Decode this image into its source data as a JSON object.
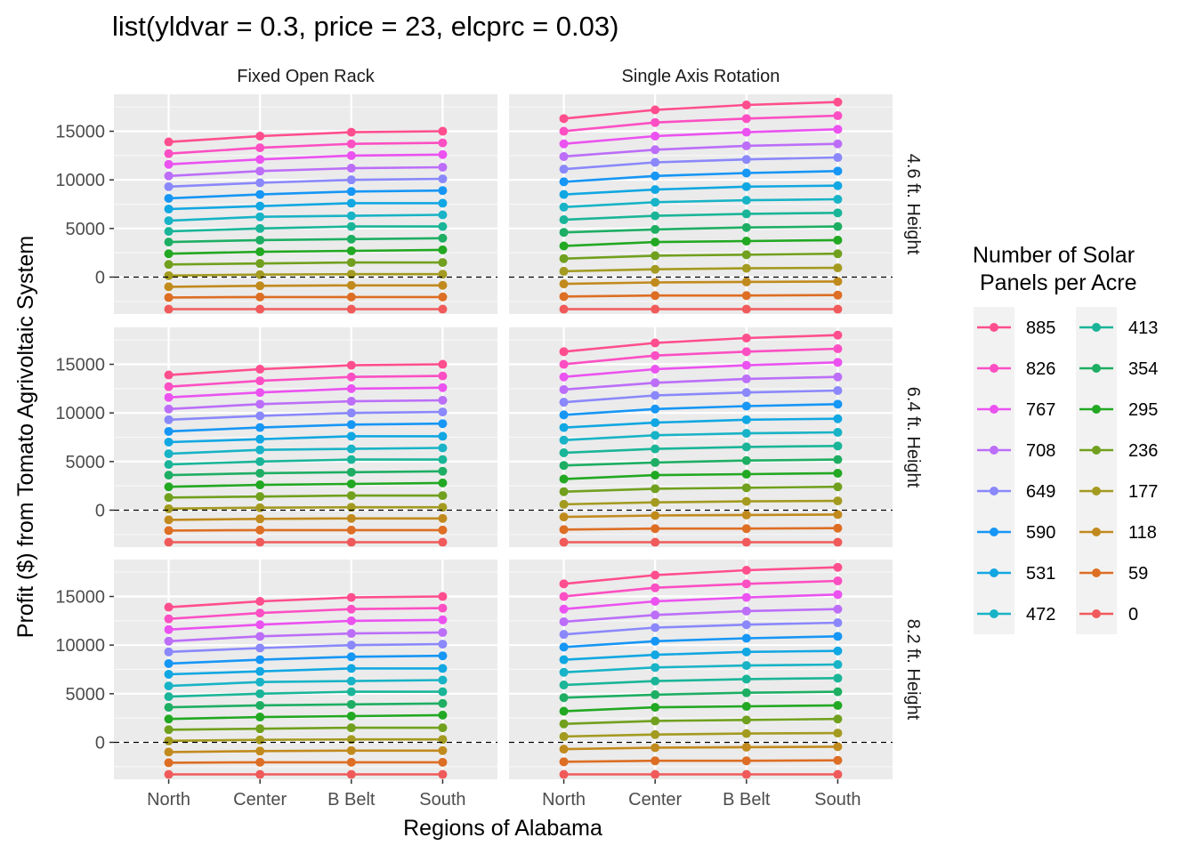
{
  "chart_data": {
    "type": "line",
    "title": "list(yldvar = 0.3, price = 23, elcprc = 0.03)",
    "xlabel": "Regions of Alabama",
    "ylabel": "Profit ($) from Tomato Agrivoltaic System",
    "categories": [
      "North",
      "Center",
      "B Belt",
      "South"
    ],
    "yticks": [
      0,
      5000,
      10000,
      15000
    ],
    "ylim": [
      -3800,
      18800
    ],
    "grid": true,
    "reference_line": 0,
    "columns": [
      "Fixed Open Rack",
      "Single Axis Rotation"
    ],
    "rows": [
      "4.6 ft. Height",
      "6.4 ft. Height",
      "8.2 ft. Height"
    ],
    "legend": {
      "title_lines": [
        "Number of Solar",
        "Panels per Acre"
      ],
      "position": "right",
      "entries": [
        {
          "label": "885",
          "color": "#FF4E8D"
        },
        {
          "label": "826",
          "color": "#FC4FC3"
        },
        {
          "label": "767",
          "color": "#EB52F0"
        },
        {
          "label": "708",
          "color": "#BC6EF8"
        },
        {
          "label": "649",
          "color": "#8A88FA"
        },
        {
          "label": "590",
          "color": "#1696F5"
        },
        {
          "label": "531",
          "color": "#11A7E2"
        },
        {
          "label": "472",
          "color": "#18B3C6"
        },
        {
          "label": "413",
          "color": "#1AB598"
        },
        {
          "label": "354",
          "color": "#1EAE63"
        },
        {
          "label": "295",
          "color": "#22A822"
        },
        {
          "label": "236",
          "color": "#71A01E"
        },
        {
          "label": "177",
          "color": "#A39A20"
        },
        {
          "label": "118",
          "color": "#C18A1D"
        },
        {
          "label": "59",
          "color": "#DD6E24"
        },
        {
          "label": "0",
          "color": "#F05A5A"
        }
      ]
    },
    "series_by_column": {
      "Fixed Open Rack": [
        {
          "name": "885",
          "values": [
            13900,
            14500,
            14900,
            15000
          ]
        },
        {
          "name": "826",
          "values": [
            12700,
            13300,
            13700,
            13800
          ]
        },
        {
          "name": "767",
          "values": [
            11600,
            12100,
            12500,
            12600
          ]
        },
        {
          "name": "708",
          "values": [
            10400,
            10900,
            11200,
            11300
          ]
        },
        {
          "name": "649",
          "values": [
            9300,
            9700,
            10000,
            10100
          ]
        },
        {
          "name": "590",
          "values": [
            8100,
            8500,
            8800,
            8900
          ]
        },
        {
          "name": "531",
          "values": [
            7000,
            7300,
            7600,
            7600
          ]
        },
        {
          "name": "472",
          "values": [
            5800,
            6200,
            6300,
            6400
          ]
        },
        {
          "name": "413",
          "values": [
            4700,
            5000,
            5200,
            5200
          ]
        },
        {
          "name": "354",
          "values": [
            3600,
            3800,
            3900,
            4000
          ]
        },
        {
          "name": "295",
          "values": [
            2400,
            2600,
            2700,
            2800
          ]
        },
        {
          "name": "236",
          "values": [
            1300,
            1400,
            1500,
            1500
          ]
        },
        {
          "name": "177",
          "values": [
            150,
            250,
            300,
            300
          ]
        },
        {
          "name": "118",
          "values": [
            -1000,
            -900,
            -850,
            -850
          ]
        },
        {
          "name": "59",
          "values": [
            -2100,
            -2050,
            -2050,
            -2050
          ]
        },
        {
          "name": "0",
          "values": [
            -3300,
            -3300,
            -3300,
            -3300
          ]
        }
      ],
      "Single Axis Rotation": [
        {
          "name": "885",
          "values": [
            16300,
            17200,
            17700,
            18000
          ]
        },
        {
          "name": "826",
          "values": [
            15000,
            15900,
            16300,
            16600
          ]
        },
        {
          "name": "767",
          "values": [
            13700,
            14500,
            14900,
            15200
          ]
        },
        {
          "name": "708",
          "values": [
            12400,
            13100,
            13500,
            13700
          ]
        },
        {
          "name": "649",
          "values": [
            11100,
            11800,
            12100,
            12300
          ]
        },
        {
          "name": "590",
          "values": [
            9800,
            10400,
            10700,
            10900
          ]
        },
        {
          "name": "531",
          "values": [
            8500,
            9000,
            9300,
            9400
          ]
        },
        {
          "name": "472",
          "values": [
            7200,
            7700,
            7900,
            8000
          ]
        },
        {
          "name": "413",
          "values": [
            5900,
            6300,
            6500,
            6600
          ]
        },
        {
          "name": "354",
          "values": [
            4600,
            4900,
            5100,
            5200
          ]
        },
        {
          "name": "295",
          "values": [
            3200,
            3600,
            3700,
            3800
          ]
        },
        {
          "name": "236",
          "values": [
            1900,
            2200,
            2300,
            2400
          ]
        },
        {
          "name": "177",
          "values": [
            600,
            800,
            900,
            950
          ]
        },
        {
          "name": "118",
          "values": [
            -700,
            -550,
            -500,
            -450
          ]
        },
        {
          "name": "59",
          "values": [
            -2000,
            -1900,
            -1900,
            -1850
          ]
        },
        {
          "name": "0",
          "values": [
            -3300,
            -3300,
            -3300,
            -3300
          ]
        }
      ]
    }
  }
}
